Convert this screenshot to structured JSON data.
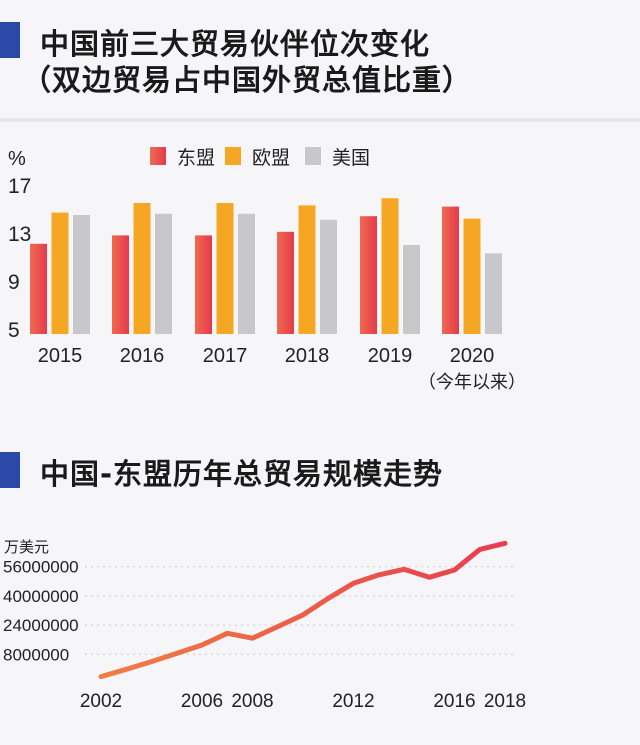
{
  "section1": {
    "title_line1": "中国前三大贸易伙伴位次变化",
    "title_line2": "（双边贸易占中国外贸总值比重）"
  },
  "section2": {
    "title": "中国-东盟历年总贸易规模走势"
  },
  "colors": {
    "accent_marker": "#2b4aa8",
    "asean": "#e8404f",
    "eu": "#f5a623",
    "us": "#c8c8ca",
    "line": "#e8464f"
  },
  "chart_data": [
    {
      "type": "bar",
      "ylabel": "%",
      "ylim": [
        5,
        17
      ],
      "yticks": [
        "17",
        "13",
        "9",
        "5"
      ],
      "categories": [
        "2015",
        "2016",
        "2017",
        "2018",
        "2019",
        "2020"
      ],
      "category_sublabels": [
        "",
        "",
        "",
        "",
        "",
        "（今年以来）"
      ],
      "legend_position": "top",
      "grid": false,
      "series": [
        {
          "name": "东盟",
          "values": [
            12.1,
            12.8,
            12.8,
            13.1,
            14.4,
            15.2
          ]
        },
        {
          "name": "欧盟",
          "values": [
            14.7,
            15.5,
            15.5,
            15.3,
            15.9,
            14.2
          ]
        },
        {
          "name": "美国",
          "values": [
            14.5,
            14.6,
            14.6,
            14.1,
            12.0,
            11.3
          ]
        }
      ]
    },
    {
      "type": "line",
      "ylabel": "万美元",
      "yticks": [
        "56000000",
        "40000000",
        "24000000",
        "8000000"
      ],
      "xticks": [
        "2002",
        "2006",
        "2008",
        "2012",
        "2016",
        "2018"
      ],
      "grid": true,
      "x": [
        2002,
        2003,
        2004,
        2005,
        2006,
        2007,
        2008,
        2009,
        2010,
        2011,
        2012,
        2013,
        2014,
        2015,
        2016,
        2017,
        2018
      ],
      "values": [
        -4200000,
        -200000,
        4000000,
        8500000,
        13100000,
        19500000,
        16800000,
        23200000,
        29600000,
        38700000,
        46900000,
        51500000,
        54600000,
        50200000,
        54200000,
        65500000,
        68800000
      ]
    }
  ]
}
